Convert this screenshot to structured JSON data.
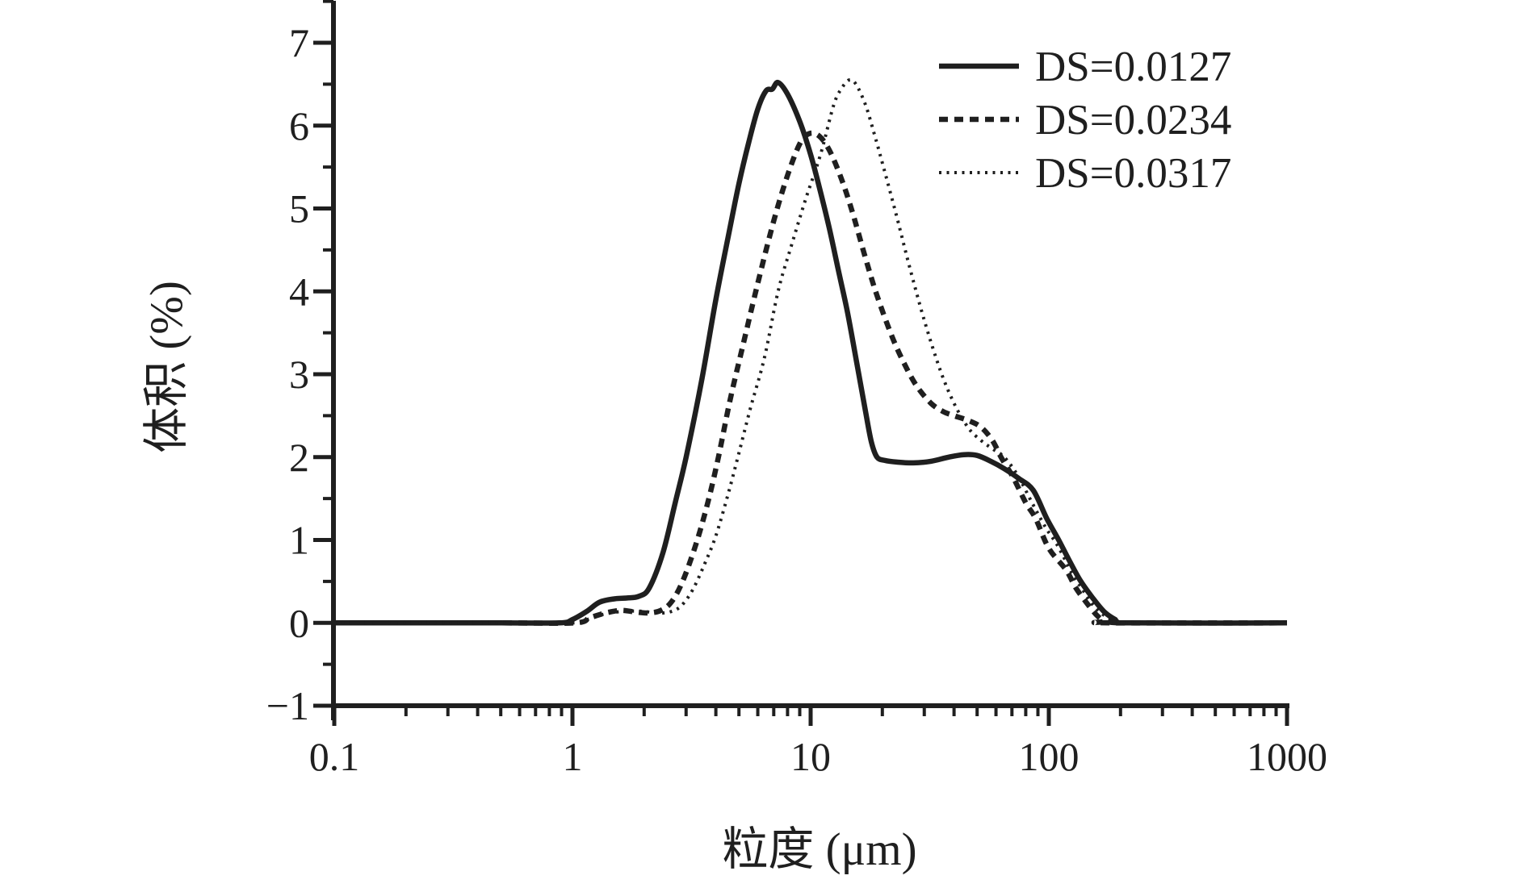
{
  "chart_data": {
    "type": "line",
    "title": "",
    "xlabel": "粒度 (μm)",
    "ylabel": "体积 (%)",
    "x_scale": "log",
    "xlim": [
      0.1,
      1000
    ],
    "ylim": [
      -1,
      7.5
    ],
    "grid": false,
    "x_ticks": {
      "values": [
        0.1,
        1,
        10,
        100,
        1000
      ],
      "labels": [
        "0.1",
        "1",
        "10",
        "100",
        "1000"
      ]
    },
    "y_ticks": {
      "values": [
        -1,
        0,
        1,
        2,
        3,
        4,
        5,
        6,
        7
      ],
      "labels": [
        "−1",
        "0",
        "1",
        "2",
        "3",
        "4",
        "5",
        "6",
        "7"
      ]
    },
    "y_minor_step": 0.5,
    "line_color": "#1f1f1f",
    "background": "#ffffff",
    "legend": {
      "position": "top-right"
    },
    "series": [
      {
        "name": "DS=0.0127",
        "line_style": "solid",
        "points": [
          [
            0.1,
            0
          ],
          [
            0.5,
            0
          ],
          [
            0.88,
            0
          ],
          [
            1.0,
            0.04
          ],
          [
            1.15,
            0.14
          ],
          [
            1.3,
            0.25
          ],
          [
            1.5,
            0.29
          ],
          [
            1.7,
            0.3
          ],
          [
            1.9,
            0.32
          ],
          [
            2.1,
            0.42
          ],
          [
            2.4,
            0.85
          ],
          [
            2.7,
            1.45
          ],
          [
            3.0,
            2.0
          ],
          [
            3.5,
            2.95
          ],
          [
            4.0,
            3.9
          ],
          [
            4.5,
            4.65
          ],
          [
            5.0,
            5.3
          ],
          [
            5.5,
            5.8
          ],
          [
            6.0,
            6.2
          ],
          [
            6.5,
            6.42
          ],
          [
            6.9,
            6.44
          ],
          [
            7.3,
            6.52
          ],
          [
            8.0,
            6.38
          ],
          [
            9.0,
            6.05
          ],
          [
            10.0,
            5.65
          ],
          [
            11.0,
            5.2
          ],
          [
            12.0,
            4.75
          ],
          [
            13.2,
            4.2
          ],
          [
            14.3,
            3.74
          ],
          [
            15.7,
            3.1
          ],
          [
            17.0,
            2.55
          ],
          [
            18.0,
            2.18
          ],
          [
            19.0,
            2.0
          ],
          [
            20.5,
            1.96
          ],
          [
            23,
            1.94
          ],
          [
            27,
            1.93
          ],
          [
            32,
            1.95
          ],
          [
            38,
            2.0
          ],
          [
            44,
            2.03
          ],
          [
            50,
            2.02
          ],
          [
            57,
            1.95
          ],
          [
            65,
            1.86
          ],
          [
            75,
            1.74
          ],
          [
            86,
            1.6
          ],
          [
            98,
            1.26
          ],
          [
            110,
            1.0
          ],
          [
            121,
            0.77
          ],
          [
            135,
            0.52
          ],
          [
            152,
            0.31
          ],
          [
            170,
            0.14
          ],
          [
            190,
            0.04
          ],
          [
            208,
            0
          ],
          [
            1000,
            0
          ]
        ]
      },
      {
        "name": "DS=0.0234",
        "line_style": "dashed",
        "points": [
          [
            0.1,
            0
          ],
          [
            0.5,
            0
          ],
          [
            1.02,
            0
          ],
          [
            1.18,
            0.06
          ],
          [
            1.38,
            0.12
          ],
          [
            1.6,
            0.15
          ],
          [
            1.85,
            0.13
          ],
          [
            2.1,
            0.12
          ],
          [
            2.35,
            0.15
          ],
          [
            2.6,
            0.25
          ],
          [
            2.9,
            0.5
          ],
          [
            3.3,
            0.95
          ],
          [
            3.7,
            1.45
          ],
          [
            4.1,
            2.0
          ],
          [
            4.6,
            2.7
          ],
          [
            5.2,
            3.35
          ],
          [
            6.0,
            4.1
          ],
          [
            7.0,
            4.85
          ],
          [
            8.0,
            5.4
          ],
          [
            9.0,
            5.78
          ],
          [
            9.8,
            5.9
          ],
          [
            10.8,
            5.88
          ],
          [
            12.0,
            5.7
          ],
          [
            13.5,
            5.35
          ],
          [
            15.0,
            4.95
          ],
          [
            17.0,
            4.4
          ],
          [
            19.0,
            3.95
          ],
          [
            22,
            3.45
          ],
          [
            25,
            3.1
          ],
          [
            28,
            2.85
          ],
          [
            32,
            2.65
          ],
          [
            36,
            2.55
          ],
          [
            40,
            2.5
          ],
          [
            46,
            2.44
          ],
          [
            52,
            2.36
          ],
          [
            58,
            2.2
          ],
          [
            63,
            2.0
          ],
          [
            71,
            1.75
          ],
          [
            80,
            1.45
          ],
          [
            88,
            1.26
          ],
          [
            100,
            0.9
          ],
          [
            118,
            0.64
          ],
          [
            130,
            0.42
          ],
          [
            146,
            0.22
          ],
          [
            158,
            0.1
          ],
          [
            170,
            0.02
          ],
          [
            178,
            0
          ],
          [
            1000,
            0
          ]
        ]
      },
      {
        "name": "DS=0.0317",
        "line_style": "dotted",
        "points": [
          [
            0.1,
            0
          ],
          [
            0.5,
            0
          ],
          [
            1.02,
            0
          ],
          [
            1.18,
            0.05
          ],
          [
            1.38,
            0.11
          ],
          [
            1.65,
            0.14
          ],
          [
            1.95,
            0.14
          ],
          [
            2.25,
            0.12
          ],
          [
            2.55,
            0.13
          ],
          [
            2.85,
            0.2
          ],
          [
            3.2,
            0.4
          ],
          [
            3.6,
            0.72
          ],
          [
            4.0,
            1.05
          ],
          [
            4.5,
            1.55
          ],
          [
            5.0,
            2.05
          ],
          [
            5.6,
            2.6
          ],
          [
            6.4,
            3.2
          ],
          [
            7.3,
            4.0
          ],
          [
            8.3,
            4.55
          ],
          [
            9.5,
            5.1
          ],
          [
            11.0,
            5.65
          ],
          [
            12.5,
            6.25
          ],
          [
            13.5,
            6.45
          ],
          [
            14.5,
            6.55
          ],
          [
            15.5,
            6.5
          ],
          [
            17.0,
            6.25
          ],
          [
            18.5,
            5.9
          ],
          [
            20,
            5.55
          ],
          [
            23,
            4.9
          ],
          [
            26,
            4.3
          ],
          [
            30,
            3.65
          ],
          [
            35,
            3.05
          ],
          [
            40,
            2.65
          ],
          [
            46,
            2.35
          ],
          [
            52,
            2.2
          ],
          [
            58,
            2.1
          ],
          [
            65,
            2.0
          ],
          [
            74,
            1.78
          ],
          [
            85,
            1.45
          ],
          [
            97,
            1.15
          ],
          [
            109,
            0.93
          ],
          [
            125,
            0.6
          ],
          [
            138,
            0.41
          ],
          [
            155,
            0.2
          ],
          [
            175,
            0.07
          ],
          [
            195,
            0.02
          ],
          [
            210,
            0
          ],
          [
            1000,
            0
          ]
        ]
      }
    ]
  }
}
